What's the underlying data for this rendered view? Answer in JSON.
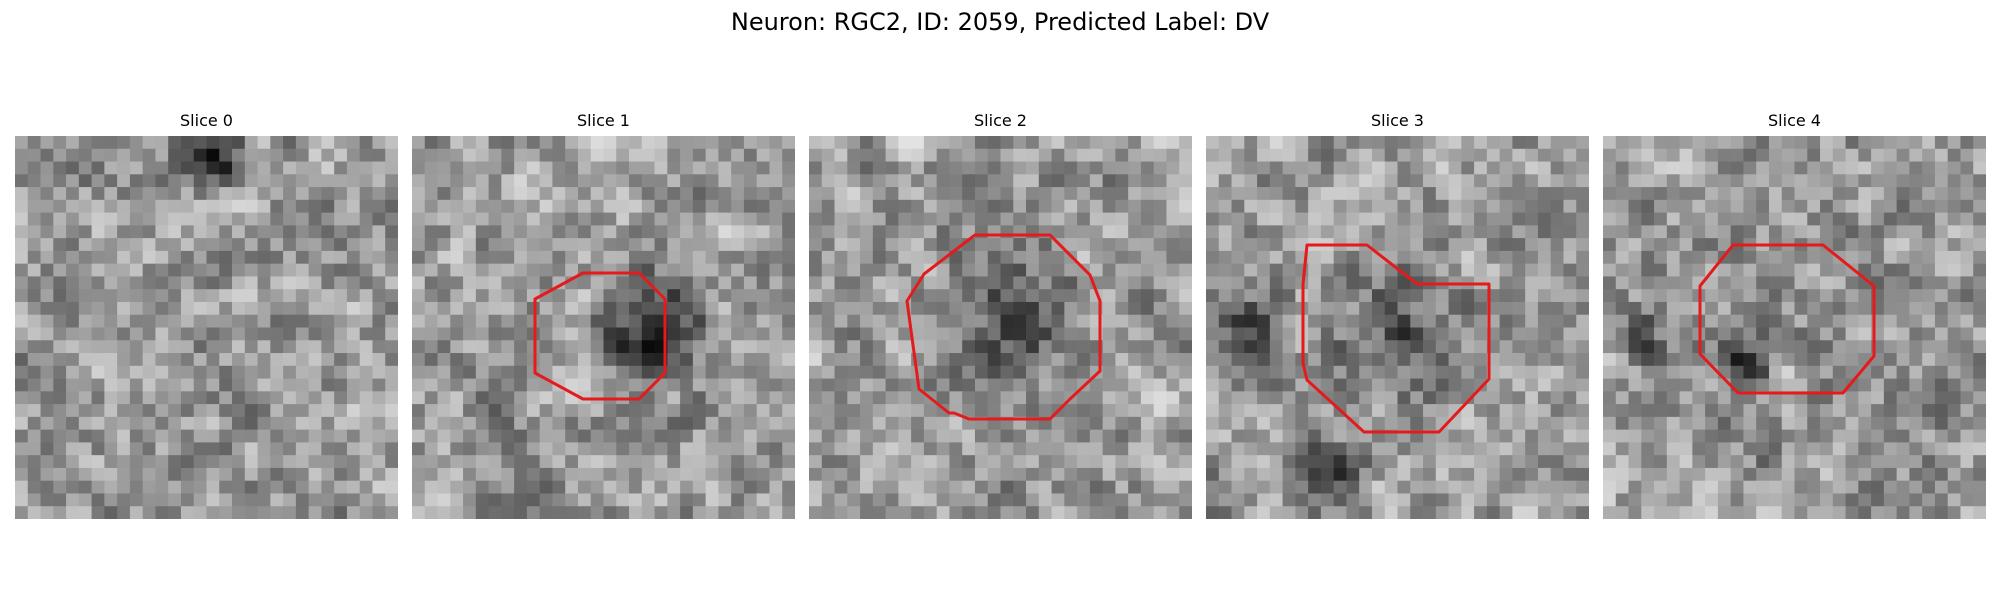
{
  "figure": {
    "title": "Neuron: RGC2, ID: 2059, Predicted Label: DV",
    "contour_color": "#e41a1c",
    "panels": [
      {
        "title": "Slice 0",
        "has_contour": false
      },
      {
        "title": "Slice 1",
        "has_contour": true
      },
      {
        "title": "Slice 2",
        "has_contour": true
      },
      {
        "title": "Slice 3",
        "has_contour": true
      },
      {
        "title": "Slice 4",
        "has_contour": true
      }
    ]
  }
}
